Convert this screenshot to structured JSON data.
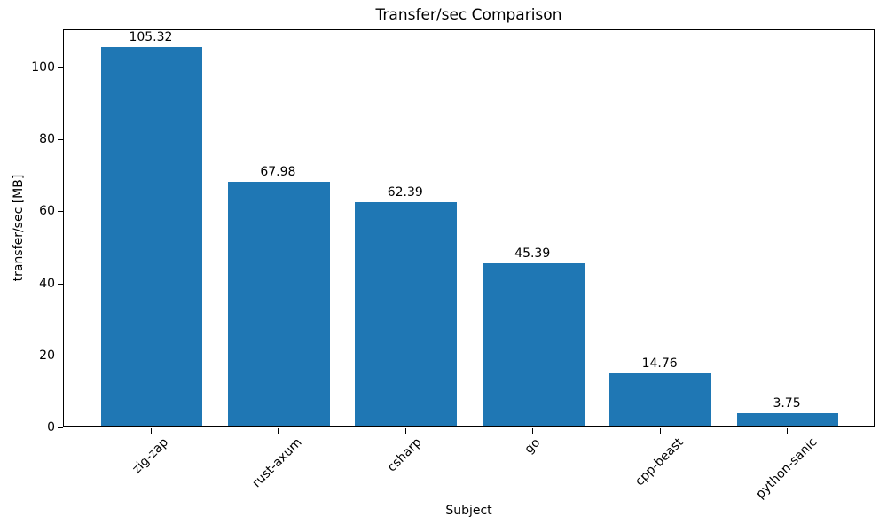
{
  "chart_data": {
    "type": "bar",
    "title": "Transfer/sec Comparison",
    "xlabel": "Subject",
    "ylabel": "transfer/sec [MB]",
    "categories": [
      "zig-zap",
      "rust-axum",
      "csharp",
      "go",
      "cpp-beast",
      "python-sanic"
    ],
    "values": [
      105.32,
      67.98,
      62.39,
      45.39,
      14.76,
      3.75
    ],
    "value_labels": [
      "105.32",
      "67.98",
      "62.39",
      "45.39",
      "14.76",
      "3.75"
    ],
    "yticks": [
      0,
      20,
      40,
      60,
      80,
      100
    ],
    "ylim": [
      0,
      110.6
    ],
    "bar_color": "#1f77b4",
    "grid": false,
    "legend": null
  }
}
